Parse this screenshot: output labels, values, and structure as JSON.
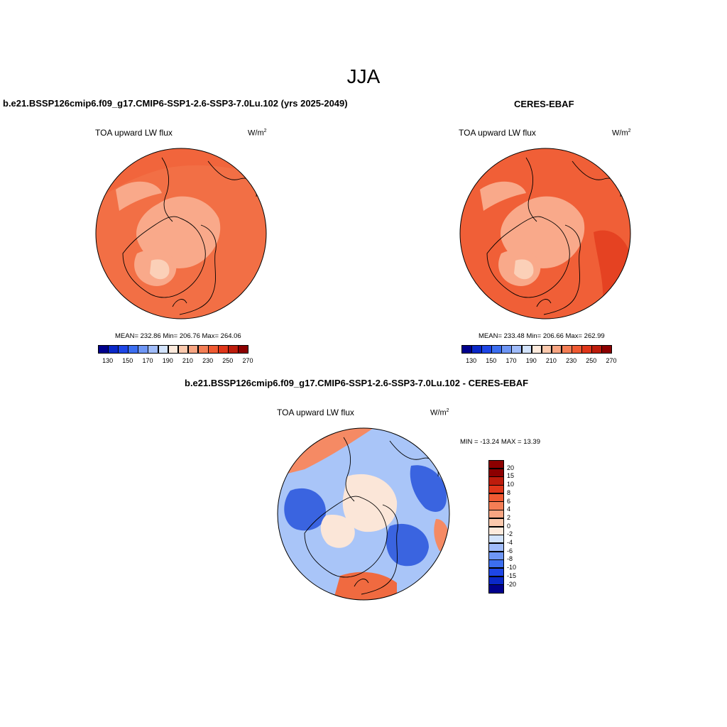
{
  "season": "JJA",
  "panel_left": {
    "title": "b.e21.BSSP126cmip6.f09_g17.CMIP6-SSP1-2.6-SSP3-7.0Lu.102 (yrs 2025-2049)",
    "variable": "TOA upward LW flux",
    "units_base": "W/m",
    "units_exp": "2",
    "stats": "MEAN= 232.86  Min= 206.76  Max= 264.06",
    "mean": 232.86,
    "min": 206.76,
    "max": 264.06
  },
  "panel_right": {
    "title": "CERES-EBAF",
    "variable": "TOA upward LW flux",
    "units_base": "W/m",
    "units_exp": "2",
    "stats": "MEAN= 233.48  Min= 206.66  Max= 262.99",
    "mean": 233.48,
    "min": 206.66,
    "max": 262.99
  },
  "panel_diff": {
    "title": "b.e21.BSSP126cmip6.f09_g17.CMIP6-SSP1-2.6-SSP3-7.0Lu.102 - CERES-EBAF",
    "variable": "TOA upward LW flux",
    "units_base": "W/m",
    "units_exp": "2",
    "stats": "MIN = -13.24 MAX =  13.39",
    "min": -13.24,
    "max": 13.39
  },
  "abs_colorbar": {
    "colors": [
      "#00008c",
      "#0a28c8",
      "#1e46e6",
      "#3c6ef0",
      "#6e96f5",
      "#a0bcfa",
      "#d2e3fc",
      "#fdeadc",
      "#fbc9ad",
      "#f8a582",
      "#f47e55",
      "#f05a32",
      "#e0361a",
      "#bd1c0c",
      "#8c0000"
    ],
    "tick_labels": [
      "130",
      "150",
      "170",
      "190",
      "210",
      "230",
      "250",
      "270"
    ]
  },
  "diff_colorbar": {
    "colors": [
      "#00008c",
      "#0a28c8",
      "#1e46e6",
      "#3c6ef0",
      "#6e96f5",
      "#a0bcfa",
      "#d2e3fc",
      "#fdeadc",
      "#fbc9ad",
      "#f8a582",
      "#f47e55",
      "#f05a32",
      "#e0361a",
      "#bd1c0c",
      "#8c0000"
    ],
    "tick_labels": [
      "20",
      "15",
      "10",
      "8",
      "6",
      "4",
      "2",
      "0",
      "-2",
      "-4",
      "-6",
      "-8",
      "-10",
      "-15",
      "-20"
    ]
  },
  "map_colors": {
    "base_left": "#f26f45",
    "base_right": "#f05f37",
    "light": "#f9a98a",
    "lighter": "#fbd0b8",
    "coast": "#000000",
    "diff_blue": "#a9c5f8",
    "diff_dark_blue": "#3a64e0",
    "diff_neutral": "#fbe6d8",
    "diff_red": "#f06a40"
  }
}
